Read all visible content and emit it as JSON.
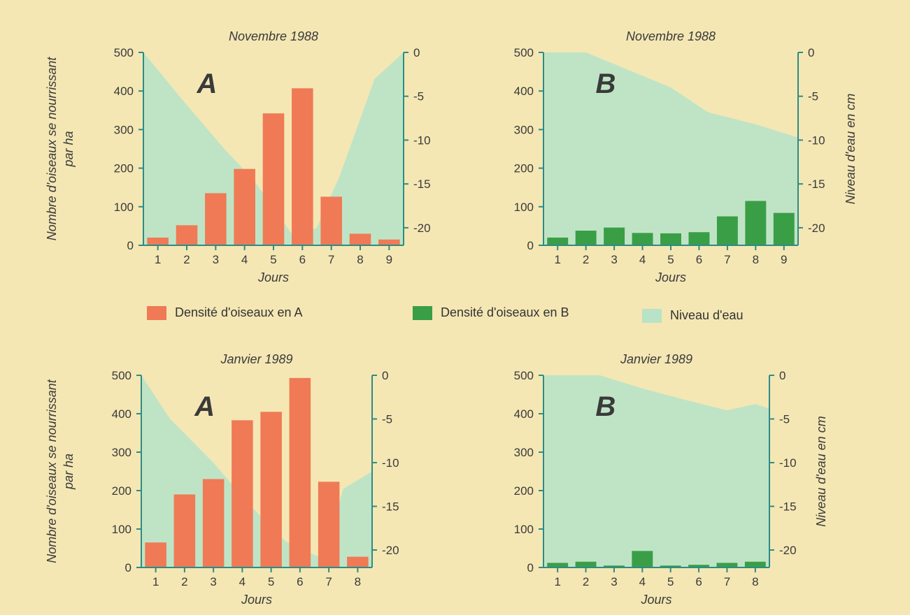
{
  "legend": [
    {
      "label": "Densité d'oiseaux en A",
      "color": "#ef7a55"
    },
    {
      "label": "Densité d'oiseaux en B",
      "color": "#3a9e47"
    },
    {
      "label": "Niveau d'eau",
      "color": "#b9e3c6"
    }
  ],
  "colors": {
    "background": "#f4e7b4",
    "axis": "#2c8c86",
    "water": "#b9e3c6",
    "bar_a": "#ef7a55",
    "bar_b": "#3a9e47"
  },
  "chart_data": [
    {
      "type": "bar",
      "title": "Novembre 1988",
      "panel_label": "A",
      "categories": [
        "1",
        "2",
        "3",
        "4",
        "5",
        "6",
        "7",
        "8",
        "9"
      ],
      "xlabel": "Jours",
      "ylabel_line1": "Nombre d'oiseaux se nourrissant",
      "ylabel_line2": "par ha",
      "ylabel_right": "",
      "ylim": [
        0,
        500
      ],
      "yticks": [
        "0",
        "100",
        "200",
        "300",
        "400",
        "500"
      ],
      "y2lim": [
        -22,
        0
      ],
      "y2ticks": [
        "0",
        "-5",
        "-10",
        "-15",
        "-20"
      ],
      "series": [
        {
          "values": [
            20,
            52,
            135,
            198,
            342,
            407,
            126,
            30,
            15
          ]
        }
      ],
      "water_level": [
        [
          0.5,
          0
        ],
        [
          2.0,
          -6
        ],
        [
          3.3,
          -11
        ],
        [
          4.3,
          -14.5
        ],
        [
          5.7,
          -21
        ],
        [
          6.5,
          -20
        ],
        [
          7.3,
          -14
        ],
        [
          8.5,
          -3
        ],
        [
          9.5,
          0
        ]
      ]
    },
    {
      "type": "bar",
      "title": "Novembre 1988",
      "panel_label": "B",
      "categories": [
        "1",
        "2",
        "3",
        "4",
        "5",
        "6",
        "7",
        "8",
        "9"
      ],
      "xlabel": "Jours",
      "ylabel_line1": "",
      "ylabel_line2": "",
      "ylabel_right": "Niveau d'eau en cm",
      "ylim": [
        0,
        500
      ],
      "yticks": [
        "0",
        "100",
        "200",
        "300",
        "400",
        "500"
      ],
      "y2lim": [
        -22,
        0
      ],
      "y2ticks": [
        "0",
        "-5",
        "-10",
        "-15",
        "-20"
      ],
      "series": [
        {
          "values": [
            20,
            38,
            46,
            32,
            31,
            34,
            75,
            115,
            84
          ]
        }
      ],
      "water_level": [
        [
          0.5,
          0
        ],
        [
          2.0,
          0
        ],
        [
          3.5,
          -2
        ],
        [
          5.0,
          -4
        ],
        [
          6.3,
          -6.8
        ],
        [
          8.0,
          -8.2
        ],
        [
          9.5,
          -9.7
        ]
      ]
    },
    {
      "type": "bar",
      "title": "Janvier 1989",
      "panel_label": "A",
      "categories": [
        "1",
        "2",
        "3",
        "4",
        "5",
        "6",
        "7",
        "8"
      ],
      "xlabel": "Jours",
      "ylabel_line1": "Nombre d'oiseaux se nourrissant",
      "ylabel_line2": "par ha",
      "ylabel_right": "",
      "ylim": [
        0,
        500
      ],
      "yticks": [
        "0",
        "100",
        "200",
        "300",
        "400",
        "500"
      ],
      "y2lim": [
        -22,
        0
      ],
      "y2ticks": [
        "0",
        "-5",
        "-10",
        "-15",
        "-20"
      ],
      "series": [
        {
          "values": [
            65,
            190,
            230,
            383,
            405,
            493,
            223,
            28
          ]
        }
      ],
      "water_level": [
        [
          0.5,
          0
        ],
        [
          1.5,
          -5
        ],
        [
          3.0,
          -10
        ],
        [
          4.3,
          -15
        ],
        [
          5.5,
          -19
        ],
        [
          6.8,
          -21
        ],
        [
          7.5,
          -13
        ],
        [
          8.5,
          -11
        ]
      ]
    },
    {
      "type": "bar",
      "title": "Janvier 1989",
      "panel_label": "B",
      "categories": [
        "1",
        "2",
        "3",
        "4",
        "5",
        "6",
        "7",
        "8"
      ],
      "xlabel": "Jours",
      "ylabel_line1": "",
      "ylabel_line2": "",
      "ylabel_right": "Niveau d'eau en cm",
      "ylim": [
        0,
        500
      ],
      "yticks": [
        "0",
        "100",
        "200",
        "300",
        "400",
        "500"
      ],
      "y2lim": [
        -22,
        0
      ],
      "y2ticks": [
        "0",
        "-5",
        "-10",
        "-15",
        "-20"
      ],
      "series": [
        {
          "values": [
            12,
            15,
            5,
            43,
            5,
            7,
            12,
            15
          ]
        }
      ],
      "water_level": [
        [
          0.5,
          0
        ],
        [
          2.5,
          0
        ],
        [
          4.0,
          -1.5
        ],
        [
          5.5,
          -2.8
        ],
        [
          7.0,
          -4
        ],
        [
          8.0,
          -3.3
        ],
        [
          8.5,
          -3.8
        ]
      ]
    }
  ]
}
